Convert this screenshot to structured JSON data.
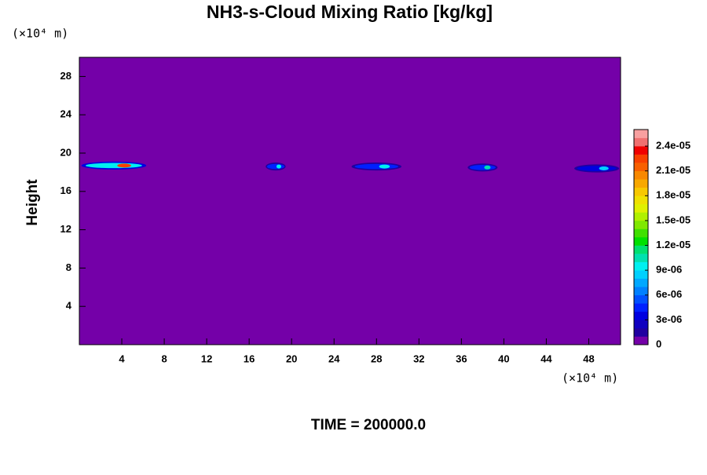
{
  "chart_data": {
    "type": "contour",
    "title": "NH3-s-Cloud Mixing Ratio [kg/kg]",
    "x_unit_label": "(×10⁴ m)",
    "y_unit_label": "(×10⁴ m)",
    "ylabel": "Height",
    "annotation": "TIME = 200000.0",
    "xlim": [
      0,
      51
    ],
    "xticks": [
      4,
      8,
      12,
      16,
      20,
      24,
      28,
      32,
      36,
      40,
      44,
      48
    ],
    "ylim": [
      0,
      30
    ],
    "yticks": [
      4,
      8,
      12,
      16,
      20,
      24,
      28
    ],
    "clim": [
      0,
      2.6e-05
    ],
    "cticks": [
      0,
      {
        "value": 3e-06,
        "label": "3e-06"
      },
      {
        "value": 6e-06,
        "label": "6e-06"
      },
      {
        "value": 9e-06,
        "label": "9e-06"
      },
      {
        "value": 1.2e-05,
        "label": "1.2e-05"
      },
      {
        "value": 1.5e-05,
        "label": "1.5e-05"
      },
      {
        "value": 1.8e-05,
        "label": "1.8e-05"
      },
      {
        "value": 2.1e-05,
        "label": "2.1e-05"
      },
      {
        "value": 2.4e-05,
        "label": "2.4e-05"
      }
    ],
    "colormap": [
      "#7400a8",
      "#2000a0",
      "#1000c0",
      "#0000e0",
      "#0020ff",
      "#0050ff",
      "#0080ff",
      "#00a8ff",
      "#00d0ff",
      "#00f0f0",
      "#00e0b0",
      "#00e070",
      "#00e000",
      "#40e000",
      "#80e800",
      "#b0f000",
      "#e0f000",
      "#f0e000",
      "#f8c800",
      "#f8a800",
      "#f88800",
      "#f86000",
      "#f84000",
      "#f00000",
      "#f07070",
      "#f8a0a0"
    ],
    "features": {
      "x0": [
        0,
        17.5,
        25.5,
        36.5,
        46.5
      ],
      "x1": [
        6.5,
        19.5,
        30.5,
        39.5,
        51
      ],
      "y": [
        18.7,
        18.6,
        18.6,
        18.5,
        18.4
      ],
      "values": [
        2.2e-05,
        9e-06,
        9e-06,
        1e-05,
        8e-06
      ]
    }
  }
}
